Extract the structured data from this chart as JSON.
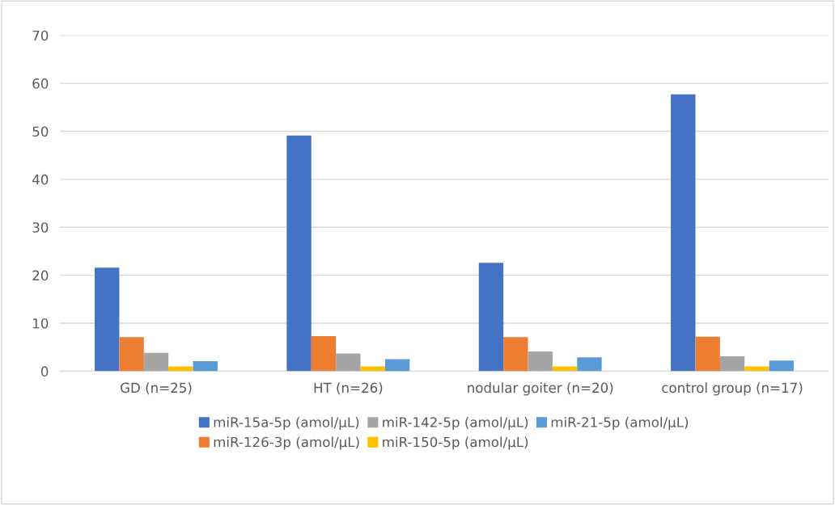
{
  "chart_data": {
    "type": "bar",
    "categories": [
      "GD (n=25)",
      "HT (n=26)",
      "nodular goiter (n=20)",
      "control group (n=17)"
    ],
    "series": [
      {
        "name": "miR-15a-5p (amol/µL)",
        "color": "#4472c4",
        "values": [
          21.6,
          49.1,
          22.6,
          57.7
        ]
      },
      {
        "name": "miR-126-3p (amol/µL)",
        "color": "#ed7d31",
        "values": [
          7.1,
          7.3,
          7.1,
          7.2
        ]
      },
      {
        "name": "miR-142-5p (amol/µL)",
        "color": "#a5a5a5",
        "values": [
          3.8,
          3.7,
          4.1,
          3.1
        ]
      },
      {
        "name": "miR-150-5p (amol/µL)",
        "color": "#ffc000",
        "values": [
          1.0,
          1.0,
          1.0,
          1.0
        ]
      },
      {
        "name": "miR-21-5p (amol/µL)",
        "color": "#5b9bd5",
        "values": [
          2.1,
          2.5,
          2.9,
          2.2
        ]
      }
    ],
    "ylim": [
      0,
      70
    ],
    "yticks": [
      0,
      10,
      20,
      30,
      40,
      50,
      60,
      70
    ],
    "grid": "y",
    "legend": "bottom"
  }
}
